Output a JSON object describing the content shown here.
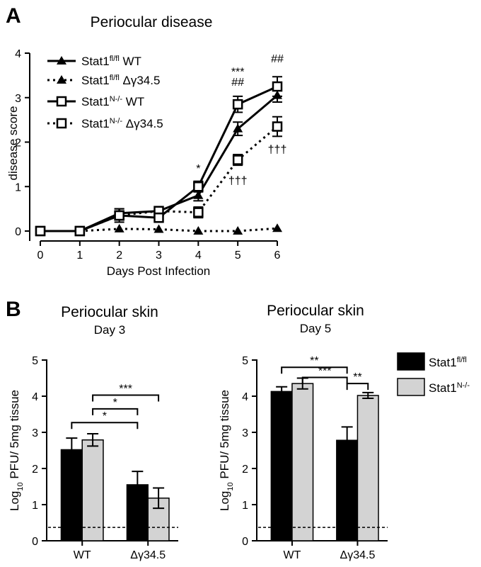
{
  "panels": {
    "a": {
      "letter": "A"
    },
    "b": {
      "letter": "B"
    }
  },
  "chart_data": [
    {
      "type": "line",
      "title": "Periocular disease",
      "xlabel": "Days Post Infection",
      "ylabel": "disease score",
      "xlim": [
        0,
        6
      ],
      "ylim": [
        0,
        4
      ],
      "x_ticks": [
        0,
        1,
        2,
        3,
        4,
        5,
        6
      ],
      "y_ticks": [
        0,
        1,
        2,
        3,
        4
      ],
      "legend_position": "top-left",
      "series": [
        {
          "key": "s1",
          "name": "Stat1",
          "sup": "fl/fl",
          "suffix": "WT",
          "marker": "triangle",
          "line": "solid",
          "x": [
            0,
            1,
            2,
            3,
            4,
            5,
            6
          ],
          "values": [
            0,
            0,
            0.4,
            0.45,
            0.8,
            2.3,
            3.05
          ],
          "errors": [
            0.03,
            0.03,
            0.1,
            0.08,
            0.12,
            0.15,
            0.15
          ]
        },
        {
          "key": "s2",
          "name": "Stat1",
          "sup": "fl/fl",
          "suffix": "Δγ34.5",
          "marker": "triangle",
          "line": "dotted",
          "x": [
            0,
            1,
            2,
            3,
            4,
            5,
            6
          ],
          "values": [
            0,
            0,
            0.05,
            0.04,
            0,
            0,
            0.06
          ],
          "errors": [
            0,
            0,
            0,
            0,
            0,
            0,
            0
          ]
        },
        {
          "key": "s3",
          "name": "Stat1",
          "sup": "N-/-",
          "suffix": "WT",
          "marker": "square",
          "line": "solid",
          "x": [
            0,
            1,
            2,
            3,
            4,
            5,
            6
          ],
          "values": [
            0,
            0,
            0.35,
            0.3,
            1.0,
            2.85,
            3.25
          ],
          "errors": [
            0.03,
            0.03,
            0.15,
            0.1,
            0.12,
            0.18,
            0.22
          ]
        },
        {
          "key": "s4",
          "name": "Stat1",
          "sup": "N-/-",
          "suffix": "Δγ34.5",
          "marker": "square",
          "line": "dotted",
          "x": [
            0,
            1,
            2,
            3,
            4,
            5,
            6
          ],
          "values": [
            0,
            0,
            0.35,
            0.45,
            0.42,
            1.6,
            2.35
          ],
          "errors": [
            0.03,
            0.03,
            0.1,
            0.1,
            0.12,
            0.12,
            0.22
          ]
        }
      ],
      "annotations": [
        {
          "x": 4,
          "y": 1.32,
          "text": "*"
        },
        {
          "x": 5,
          "y": 3.5,
          "text": "***"
        },
        {
          "x": 5,
          "y": 3.27,
          "text": "##"
        },
        {
          "x": 6,
          "y": 3.79,
          "text": "##"
        },
        {
          "x": 5,
          "y": 1.05,
          "text": "†††"
        },
        {
          "x": 6,
          "y": 1.75,
          "text": "†††"
        }
      ]
    },
    {
      "type": "bar",
      "title": "Periocular skin",
      "subtitle": "Day 3",
      "ylabel": "Log10 PFU/ 5mg tissue",
      "ylabel_parts": {
        "pre": "Log",
        "sub": "10",
        "post": " PFU/ 5mg tissue"
      },
      "categories": [
        "WT",
        "Δγ34.5"
      ],
      "ylim": [
        0,
        5
      ],
      "y_ticks": [
        0,
        1,
        2,
        3,
        4,
        5
      ],
      "detection_limit": 0.37,
      "series": [
        {
          "name": "Stat1",
          "sup": "fl/fl",
          "color": "#000000",
          "values": [
            2.52,
            1.55
          ],
          "errors": [
            0.32,
            0.37
          ]
        },
        {
          "name": "Stat1",
          "sup": "N-/-",
          "color": "#d3d3d3",
          "values": [
            2.79,
            1.18
          ],
          "errors": [
            0.17,
            0.28
          ]
        }
      ],
      "brackets": [
        {
          "from": [
            0,
            0
          ],
          "to": [
            1,
            0
          ],
          "y": 3.27,
          "text": "*"
        },
        {
          "from": [
            0,
            1
          ],
          "to": [
            1,
            0
          ],
          "y": 3.65,
          "text": "*"
        },
        {
          "from": [
            0,
            1
          ],
          "to": [
            1,
            1
          ],
          "y": 4.03,
          "text": "***"
        }
      ]
    },
    {
      "type": "bar",
      "title": "Periocular skin",
      "subtitle": "Day 5",
      "ylabel": "Log10 PFU/ 5mg tissue",
      "ylabel_parts": {
        "pre": "Log",
        "sub": "10",
        "post": " PFU/ 5mg tissue"
      },
      "categories": [
        "WT",
        "Δγ34.5"
      ],
      "ylim": [
        0,
        5
      ],
      "y_ticks": [
        0,
        1,
        2,
        3,
        4,
        5
      ],
      "detection_limit": 0.37,
      "legend_position": "right",
      "series": [
        {
          "name": "Stat1",
          "sup": "fl/fl",
          "color": "#000000",
          "values": [
            4.13,
            2.78
          ],
          "errors": [
            0.13,
            0.37
          ]
        },
        {
          "name": "Stat1",
          "sup": "N-/-",
          "color": "#d3d3d3",
          "values": [
            4.35,
            4.02
          ],
          "errors": [
            0.15,
            0.08
          ]
        }
      ],
      "brackets": [
        {
          "from": [
            0,
            0
          ],
          "to": [
            1,
            0
          ],
          "y": 4.8,
          "text": "**"
        },
        {
          "from": [
            0,
            1
          ],
          "to": [
            1,
            0
          ],
          "y": 4.52,
          "text": "***"
        },
        {
          "from": [
            1,
            0
          ],
          "to": [
            1,
            1
          ],
          "y": 4.35,
          "text": "**"
        }
      ]
    }
  ]
}
